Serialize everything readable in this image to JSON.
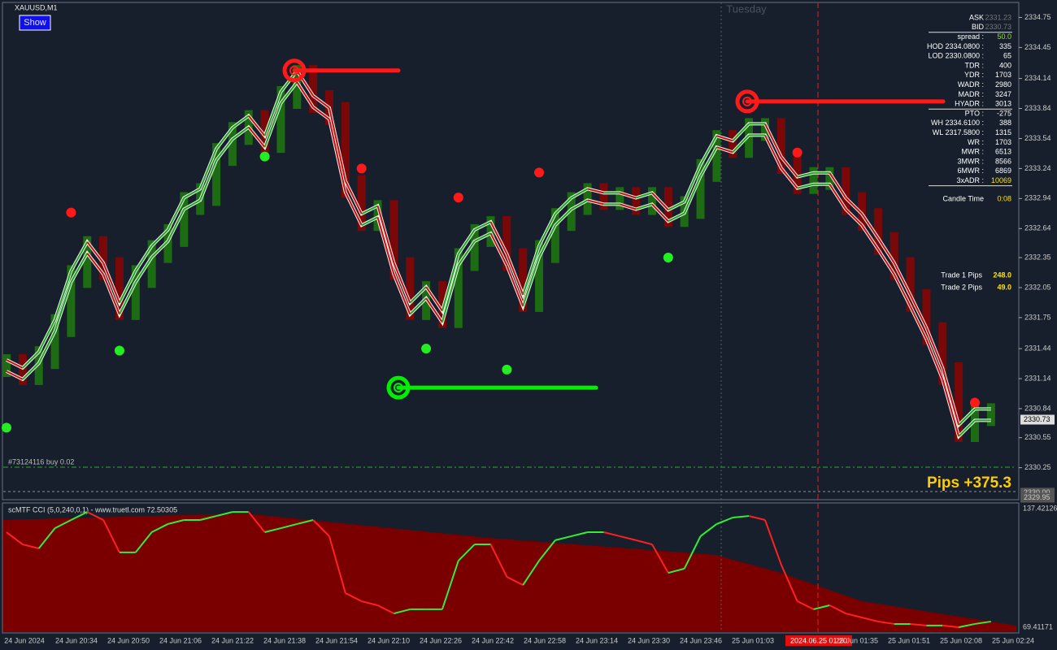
{
  "window": {
    "symbol": "XAUUSD,M1",
    "button": "Show",
    "day": "Tuesday",
    "order": "#73124116 buy 0.02",
    "pips_total": "Pips +375.3"
  },
  "price_chart": {
    "type": "bar",
    "ylim": [
      2329.93,
      2334.9
    ],
    "yticks": [
      2334.75,
      2334.45,
      2334.14,
      2333.84,
      2333.54,
      2333.24,
      2332.94,
      2332.64,
      2332.35,
      2332.05,
      2331.75,
      2331.44,
      2331.14,
      2330.84,
      2330.55,
      2330.25
    ],
    "price_labels": [
      {
        "value": 2330.73,
        "label": "2330.73"
      },
      {
        "value": 2330.0,
        "label": "2330.00"
      },
      {
        "value": 2329.95,
        "label": "2329.95"
      }
    ],
    "values": [
      2331.27,
      2331.19,
      2331.35,
      2331.67,
      2332.16,
      2332.45,
      2332.24,
      2331.84,
      2332.16,
      2332.41,
      2332.57,
      2332.89,
      2332.98,
      2333.38,
      2333.59,
      2333.71,
      2333.51,
      2333.95,
      2334.16,
      2333.91,
      2333.79,
      2333.06,
      2332.73,
      2332.81,
      2332.24,
      2331.84,
      2332.0,
      2331.76,
      2332.33,
      2332.57,
      2332.65,
      2332.33,
      2331.92,
      2332.41,
      2332.73,
      2332.89,
      2332.98,
      2332.94,
      2332.94,
      2332.89,
      2332.94,
      2332.77,
      2332.85,
      2333.22,
      2333.51,
      2333.46,
      2333.63,
      2333.63,
      2333.3,
      2333.1,
      2333.14,
      2333.14,
      2332.89,
      2332.73,
      2332.49,
      2332.24,
      2331.92,
      2331.59,
      2331.19,
      2330.62,
      2330.78,
      2330.78
    ],
    "sell_signals": [
      null,
      null,
      null,
      null,
      2332.8,
      null,
      null,
      null,
      null,
      null,
      null,
      null,
      null,
      null,
      null,
      null,
      null,
      null,
      null,
      null,
      null,
      null,
      2333.24,
      null,
      null,
      null,
      null,
      null,
      2332.95,
      null,
      null,
      null,
      null,
      2333.2,
      null,
      null,
      null,
      null,
      null,
      null,
      null,
      null,
      null,
      null,
      null,
      null,
      null,
      null,
      null,
      2333.4,
      null,
      null,
      null,
      null,
      null,
      null,
      null,
      null,
      null,
      null,
      2330.9,
      null
    ],
    "buy_signals": [
      2330.65,
      null,
      null,
      null,
      null,
      null,
      null,
      2331.42,
      null,
      null,
      null,
      null,
      null,
      null,
      null,
      null,
      2333.36,
      null,
      null,
      null,
      null,
      null,
      null,
      null,
      null,
      null,
      2331.44,
      null,
      null,
      null,
      null,
      2331.23,
      null,
      null,
      null,
      null,
      null,
      null,
      null,
      null,
      null,
      2332.35,
      null,
      null,
      null,
      null,
      null,
      null,
      null,
      null,
      null,
      null,
      null,
      null,
      null,
      null,
      null,
      null,
      null,
      null,
      null,
      null
    ],
    "levels": [
      {
        "color": "#ff1a1a",
        "price": 2334.22
      },
      {
        "color": "#ff1a1a",
        "price": 2333.91
      },
      {
        "color": "#00ee00",
        "price": 2331.05
      }
    ]
  },
  "cci": {
    "title": "scMTF CCI (5,0,240,0,1) - www.truetl.com 72.50305",
    "ylim": [
      69.41171,
      137.42126
    ],
    "yticks": [
      137.42126,
      69.41171
    ],
    "values": [
      123.9,
      116.9,
      114.6,
      126.2,
      130.9,
      135.5,
      130.9,
      112.3,
      112.3,
      123.9,
      128.6,
      130.9,
      130.9,
      133.2,
      135.5,
      135.5,
      123.9,
      126.2,
      128.6,
      130.9,
      121.6,
      89.0,
      84.3,
      82.0,
      77.3,
      79.7,
      79.7,
      79.7,
      107.6,
      116.9,
      116.9,
      98.3,
      93.6,
      107.6,
      119.3,
      121.6,
      123.9,
      123.9,
      121.6,
      119.3,
      116.9,
      100.6,
      103.0,
      121.6,
      128.6,
      132.3,
      133.2,
      130.9,
      105.3,
      84.3,
      79.7,
      82.0,
      77.3,
      75.0,
      72.7,
      71.3,
      71.3,
      70.4,
      70.4,
      69.4,
      71.3,
      72.7
    ]
  },
  "time_labels": [
    "24 Jun 2024",
    "24 Jun 20:34",
    "24 Jun 20:50",
    "24 Jun 21:06",
    "24 Jun 21:22",
    "24 Jun 21:38",
    "24 Jun 21:54",
    "24 Jun 22:10",
    "24 Jun 22:26",
    "24 Jun 22:42",
    "24 Jun 22:58",
    "24 Jun 23:14",
    "24 Jun 23:30",
    "24 Jun 23:46",
    "25 Jun 01:03",
    null,
    "25 Jun 01:35",
    "25 Jun 01:51",
    "25 Jun 02:08",
    "25 Jun 02:24"
  ],
  "cursor_time": "2024.06.25 01:20",
  "panel": [
    [
      "ASK",
      "2331.23"
    ],
    [
      "BID",
      "2330.73"
    ],
    [
      "spread :",
      "50.0"
    ],
    [
      "HOD 2334.0800 :",
      "335"
    ],
    [
      "LOD 2330.0800 :",
      "65"
    ],
    [
      "TDR :",
      "400"
    ],
    [
      "YDR :",
      "1703"
    ],
    [
      "WADR :",
      "2980"
    ],
    [
      "MADR :",
      "3247"
    ],
    [
      "HYADR :",
      "3013"
    ],
    [
      "PTO :",
      "-275"
    ],
    [
      "WH 2334.6100 :",
      "388"
    ],
    [
      "WL 2317.5800 :",
      "1315"
    ],
    [
      "WR :",
      "1703"
    ],
    [
      "MWR :",
      "6513"
    ],
    [
      "3MWR :",
      "8566"
    ],
    [
      "6MWR :",
      "6869"
    ],
    [
      "3xADR :",
      "10069"
    ],
    [
      "Candle Time",
      "0:08"
    ]
  ],
  "trades": [
    [
      "Trade 1 Pips",
      "248.0"
    ],
    [
      "Trade 2 Pips",
      "49.0"
    ]
  ]
}
